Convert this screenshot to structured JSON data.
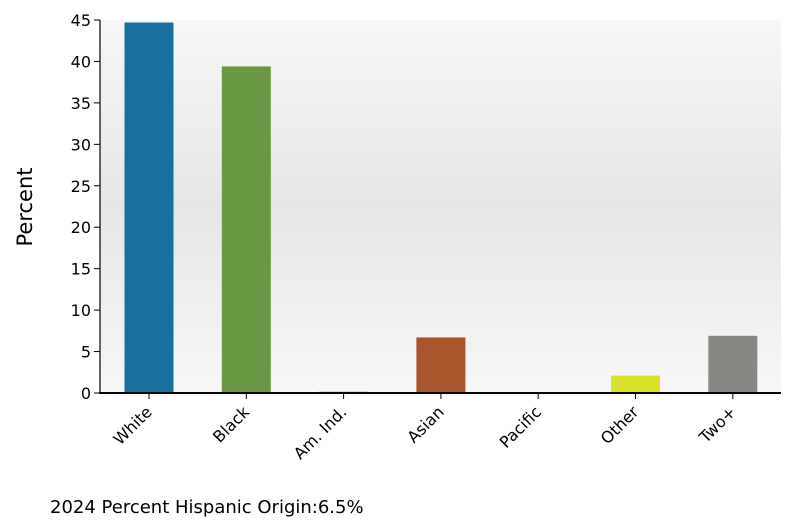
{
  "chart_data": {
    "type": "bar",
    "title": "",
    "xlabel": "",
    "ylabel": "Percent",
    "categories": [
      "White",
      "Black",
      "Am. Ind.",
      "Asian",
      "Pacific",
      "Other",
      "Two+"
    ],
    "values": [
      44.7,
      39.4,
      0.2,
      6.7,
      0.05,
      2.1,
      6.9
    ],
    "colors": [
      "#17709f",
      "#6b9843",
      "#e0d830",
      "#a9542a",
      "#a9542a",
      "#dbe22a",
      "#878883"
    ],
    "ylim": [
      0,
      45
    ],
    "yticks": [
      "0",
      "5",
      "10",
      "15",
      "20",
      "25",
      "30",
      "35",
      "40",
      "45"
    ],
    "grid": false,
    "background": "gradient-gray"
  },
  "footnote": "2024 Percent Hispanic Origin:6.5%"
}
